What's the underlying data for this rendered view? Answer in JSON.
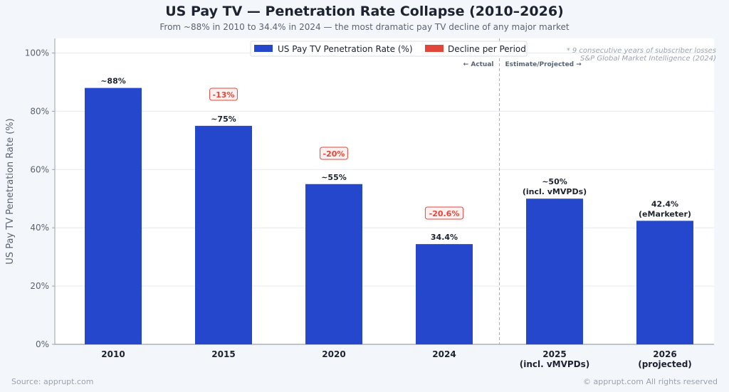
{
  "header": {
    "title": "US Pay TV — Penetration Rate Collapse (2010–2026)",
    "subtitle": "From ~88% in 2010 to 34.4% in 2024 — the most dramatic pay TV decline of any major market"
  },
  "footer": {
    "source": "Source: apprupt.com",
    "copyright": "© apprupt.com  All rights reserved"
  },
  "chart_data": {
    "type": "bar",
    "title": "US Pay TV — Penetration Rate Collapse (2010–2026)",
    "ylabel": "US Pay TV Penetration Rate (%)",
    "xlabel": "",
    "ylim": [
      0,
      105
    ],
    "yticks": [
      0,
      20,
      40,
      60,
      80,
      100
    ],
    "ytick_labels": [
      "0%",
      "20%",
      "40%",
      "60%",
      "80%",
      "100%"
    ],
    "grid": true,
    "categories": [
      "2010",
      "2015",
      "2020",
      "2024",
      "2025\n(incl. vMVPDs)",
      "2026\n(projected)"
    ],
    "values": [
      88,
      75,
      55,
      34.4,
      50,
      42.4
    ],
    "data_labels": [
      "~88%",
      "~75%",
      "~55%",
      "34.4%",
      "~50%\n(incl. vMVPDs)",
      "42.4%\n(eMarketer)"
    ],
    "declines": [
      {
        "between": [
          "2010",
          "2015"
        ],
        "label": "-13%"
      },
      {
        "between": [
          "2015",
          "2020"
        ],
        "label": "-20%"
      },
      {
        "between": [
          "2020",
          "2024"
        ],
        "label": "-20.6%"
      }
    ],
    "legend": {
      "placement": "top-center",
      "entries": [
        {
          "label": "US Pay TV Penetration Rate (%)",
          "color": "#2447cc"
        },
        {
          "label": "Decline per Period",
          "color": "#e0473a"
        }
      ]
    },
    "divider": {
      "after_category": "2024",
      "left_label": "← Actual",
      "right_label": "Estimate/Projected →"
    },
    "annotations": [
      "* 9 consecutive years of subscriber losses",
      "S&P Global Market Intelligence (2024)"
    ],
    "colors": {
      "bar": "#2447cc",
      "decline": "#e0473a"
    }
  }
}
